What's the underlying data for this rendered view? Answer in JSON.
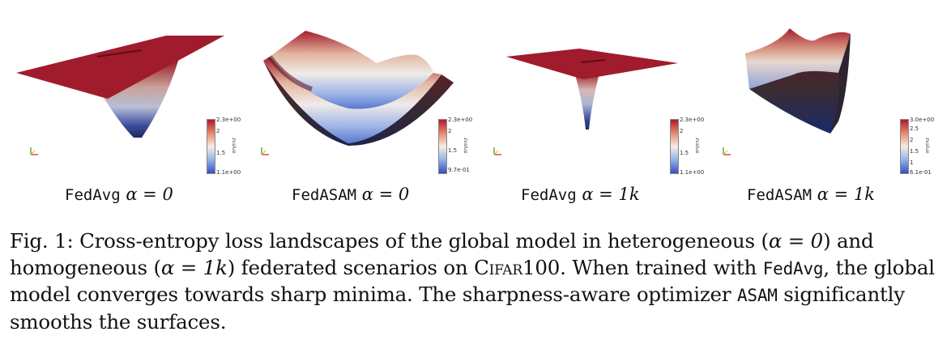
{
  "panels": [
    {
      "method": "FedAvg",
      "alpha": "α = 0",
      "colorbar": {
        "max": "2.3e+00",
        "mid1": "2",
        "mid2": "1.5",
        "min": "1.1e+00",
        "var": "zvalue"
      }
    },
    {
      "method": "FedASAM",
      "alpha": "α = 0",
      "colorbar": {
        "max": "2.3e+00",
        "mid1": "2",
        "mid2": "1.5",
        "min": "9.7e-01",
        "var": "zvalue"
      }
    },
    {
      "method": "FedAvg",
      "alpha": "α = 1k",
      "colorbar": {
        "max": "2.3e+00",
        "mid1": "2",
        "mid2": "1.5",
        "min": "1.1e+00",
        "var": "zvalue"
      }
    },
    {
      "method": "FedASAM",
      "alpha": "α = 1k",
      "colorbar": {
        "max": "3.0e+00",
        "mid1": "2.5",
        "mid2": "2",
        "mid3": "1.5",
        "mid4": "1",
        "min": "6.1e-01",
        "var": "zvalue"
      }
    }
  ],
  "caption": {
    "prefix": "Fig. 1: Cross-entropy loss landscapes of the global model in heterogeneous (",
    "alpha0": "α = 0",
    "part2": ") and homogeneous (",
    "alpha1k": "α = 1k",
    "part3": ") federated scenarios on ",
    "dataset": "Cifar100",
    "part4": ". When trained with ",
    "fedavg": "FedAvg",
    "part5": ", the global model converges towards sharp minima. The sharpness-aware optimizer ",
    "asam": "ASAM",
    "part6": " significantly smooths the surfaces."
  },
  "colors": {
    "red": "#a01c2c",
    "blue": "#2b3c8f",
    "white": "#f3ebe6"
  }
}
